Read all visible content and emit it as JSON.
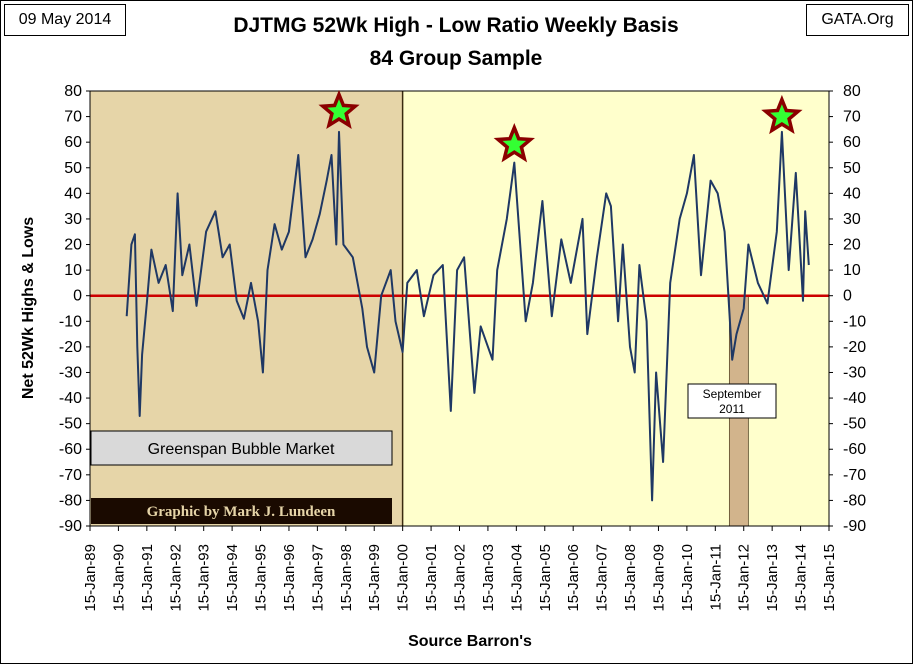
{
  "header": {
    "date": "09 May 2014",
    "source_site": "GATA.Org",
    "title_line1": "DJTMG 52Wk High - Low Ratio Weekly Basis",
    "title_line2": "84 Group Sample"
  },
  "chart_data": {
    "type": "line",
    "title": "DJTMG 52Wk High - Low Ratio Weekly Basis",
    "subtitle": "84 Group Sample",
    "xlabel": "Source Barron's",
    "ylabel": "Net 52Wk Highs & Lows",
    "ylim": [
      -90,
      80
    ],
    "yticks": [
      -90,
      -80,
      -70,
      -60,
      -50,
      -40,
      -30,
      -20,
      -10,
      0,
      10,
      20,
      30,
      40,
      50,
      60,
      70,
      80
    ],
    "xlim": [
      "1989-01-15",
      "2015-01-15"
    ],
    "xtick_labels": [
      "15-Jan-89",
      "15-Jan-90",
      "15-Jan-91",
      "15-Jan-92",
      "15-Jan-93",
      "15-Jan-94",
      "15-Jan-95",
      "15-Jan-96",
      "15-Jan-97",
      "15-Jan-98",
      "15-Jan-99",
      "15-Jan-00",
      "15-Jan-01",
      "15-Jan-02",
      "15-Jan-03",
      "15-Jan-04",
      "15-Jan-05",
      "15-Jan-06",
      "15-Jan-07",
      "15-Jan-08",
      "15-Jan-09",
      "15-Jan-10",
      "15-Jan-11",
      "15-Jan-12",
      "15-Jan-13",
      "15-Jan-14",
      "15-Jan-15"
    ],
    "grid": false,
    "series": [
      {
        "values": [
          [
            "1990-05-01",
            -8
          ],
          [
            "1990-07-01",
            20
          ],
          [
            "1990-08-15",
            24
          ],
          [
            "1990-09-15",
            -20
          ],
          [
            "1990-10-15",
            -47
          ],
          [
            "1990-11-15",
            -23
          ],
          [
            "1991-01-15",
            -3
          ],
          [
            "1991-03-15",
            18
          ],
          [
            "1991-06-15",
            5
          ],
          [
            "1991-09-15",
            12
          ],
          [
            "1991-12-15",
            -6
          ],
          [
            "1992-02-15",
            40
          ],
          [
            "1992-04-15",
            8
          ],
          [
            "1992-07-15",
            20
          ],
          [
            "1992-10-15",
            -4
          ],
          [
            "1993-02-15",
            25
          ],
          [
            "1993-06-15",
            33
          ],
          [
            "1993-09-15",
            15
          ],
          [
            "1993-12-15",
            20
          ],
          [
            "1994-03-15",
            -2
          ],
          [
            "1994-06-15",
            -9
          ],
          [
            "1994-09-15",
            5
          ],
          [
            "1994-12-15",
            -10
          ],
          [
            "1995-02-15",
            -30
          ],
          [
            "1995-04-15",
            10
          ],
          [
            "1995-07-15",
            28
          ],
          [
            "1995-10-15",
            18
          ],
          [
            "1996-01-15",
            25
          ],
          [
            "1996-05-15",
            55
          ],
          [
            "1996-08-15",
            15
          ],
          [
            "1996-11-15",
            22
          ],
          [
            "1997-02-15",
            32
          ],
          [
            "1997-05-15",
            45
          ],
          [
            "1997-07-15",
            55
          ],
          [
            "1997-09-15",
            20
          ],
          [
            "1997-10-20",
            64
          ],
          [
            "1997-12-15",
            20
          ],
          [
            "1998-04-15",
            15
          ],
          [
            "1998-08-15",
            -5
          ],
          [
            "1998-10-15",
            -20
          ],
          [
            "1999-01-15",
            -30
          ],
          [
            "1999-04-15",
            0
          ],
          [
            "1999-08-15",
            10
          ],
          [
            "1999-10-15",
            -10
          ],
          [
            "2000-01-15",
            -22
          ],
          [
            "2000-03-15",
            5
          ],
          [
            "2000-07-15",
            10
          ],
          [
            "2000-10-15",
            -8
          ],
          [
            "2001-02-15",
            8
          ],
          [
            "2001-06-15",
            12
          ],
          [
            "2001-09-25",
            -45
          ],
          [
            "2001-12-15",
            10
          ],
          [
            "2002-03-15",
            15
          ],
          [
            "2002-07-25",
            -38
          ],
          [
            "2002-10-15",
            -12
          ],
          [
            "2003-03-15",
            -25
          ],
          [
            "2003-05-15",
            10
          ],
          [
            "2003-09-15",
            30
          ],
          [
            "2003-12-20",
            52
          ],
          [
            "2004-05-15",
            -10
          ],
          [
            "2004-08-15",
            5
          ],
          [
            "2004-12-15",
            37
          ],
          [
            "2005-04-15",
            -8
          ],
          [
            "2005-08-15",
            22
          ],
          [
            "2005-12-15",
            5
          ],
          [
            "2006-05-15",
            30
          ],
          [
            "2006-07-15",
            -15
          ],
          [
            "2006-11-15",
            15
          ],
          [
            "2007-03-15",
            40
          ],
          [
            "2007-05-15",
            35
          ],
          [
            "2007-08-15",
            -10
          ],
          [
            "2007-10-15",
            20
          ],
          [
            "2008-01-15",
            -20
          ],
          [
            "2008-03-15",
            -30
          ],
          [
            "2008-05-15",
            12
          ],
          [
            "2008-08-15",
            -10
          ],
          [
            "2008-10-25",
            -80
          ],
          [
            "2008-12-15",
            -30
          ],
          [
            "2009-03-15",
            -65
          ],
          [
            "2009-06-15",
            5
          ],
          [
            "2009-10-15",
            30
          ],
          [
            "2010-01-15",
            40
          ],
          [
            "2010-04-15",
            55
          ],
          [
            "2010-07-15",
            8
          ],
          [
            "2010-11-15",
            45
          ],
          [
            "2011-02-15",
            40
          ],
          [
            "2011-05-15",
            25
          ],
          [
            "2011-08-20",
            -25
          ],
          [
            "2011-10-15",
            -15
          ],
          [
            "2012-01-15",
            -5
          ],
          [
            "2012-03-15",
            20
          ],
          [
            "2012-07-15",
            5
          ],
          [
            "2012-11-15",
            -3
          ],
          [
            "2013-03-15",
            25
          ],
          [
            "2013-05-20",
            64
          ],
          [
            "2013-08-15",
            10
          ],
          [
            "2013-11-15",
            48
          ],
          [
            "2014-02-15",
            -2
          ],
          [
            "2014-03-15",
            33
          ],
          [
            "2014-05-01",
            12
          ]
        ]
      }
    ],
    "annotations": {
      "shaded_region_label": "Greenspan Bubble Market",
      "shaded_region_range": [
        "1989-01-15",
        "2000-01-15"
      ],
      "september_band_label_line1": "September",
      "september_band_label_line2": "2011",
      "september_band_range": [
        "2011-07-15",
        "2012-03-15"
      ],
      "credit": "Graphic by Mark J. Lundeen",
      "star_peaks": [
        {
          "date": "1997-10-20",
          "value": 72
        },
        {
          "date": "2003-12-20",
          "value": 59
        },
        {
          "date": "2013-05-20",
          "value": 70
        }
      ]
    },
    "colors": {
      "plot_bg": "#ffffcc",
      "greenspan_bg": "#e6d5a8",
      "september_band": "#d2b48c",
      "series_line": "#1f3864",
      "zero_line": "#cc0000",
      "star_fill": "#33ff33",
      "star_outline": "#8b0000"
    }
  }
}
